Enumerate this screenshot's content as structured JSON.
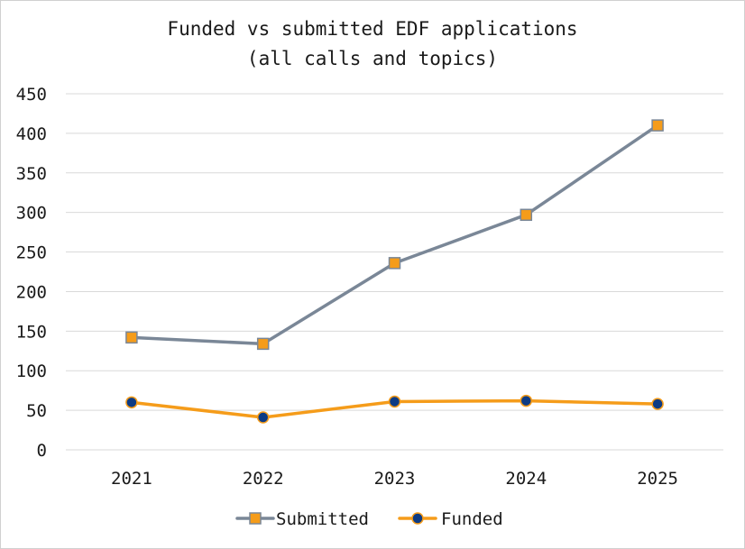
{
  "chart_data": {
    "type": "line",
    "title_lines": [
      "Funded vs submitted EDF applications",
      "(all calls and topics)"
    ],
    "xlabel": "",
    "ylabel": "",
    "categories": [
      "2021",
      "2022",
      "2023",
      "2024",
      "2025"
    ],
    "ylim": [
      0,
      450
    ],
    "yticks": [
      "0",
      "50",
      "100",
      "150",
      "200",
      "250",
      "300",
      "350",
      "400",
      "450"
    ],
    "grid": true,
    "legend_position": "bottom",
    "series": [
      {
        "name": "Submitted",
        "values": [
          142,
          134,
          236,
          297,
          410
        ],
        "line_color": "#7a8797",
        "marker": "square",
        "marker_fill": "#f59c1a",
        "marker_edge": "#7a8797"
      },
      {
        "name": "Funded",
        "values": [
          60,
          41,
          61,
          62,
          58
        ],
        "line_color": "#f59c1a",
        "marker": "circle",
        "marker_fill": "#0d3b84",
        "marker_edge": "#f59c1a"
      }
    ]
  }
}
